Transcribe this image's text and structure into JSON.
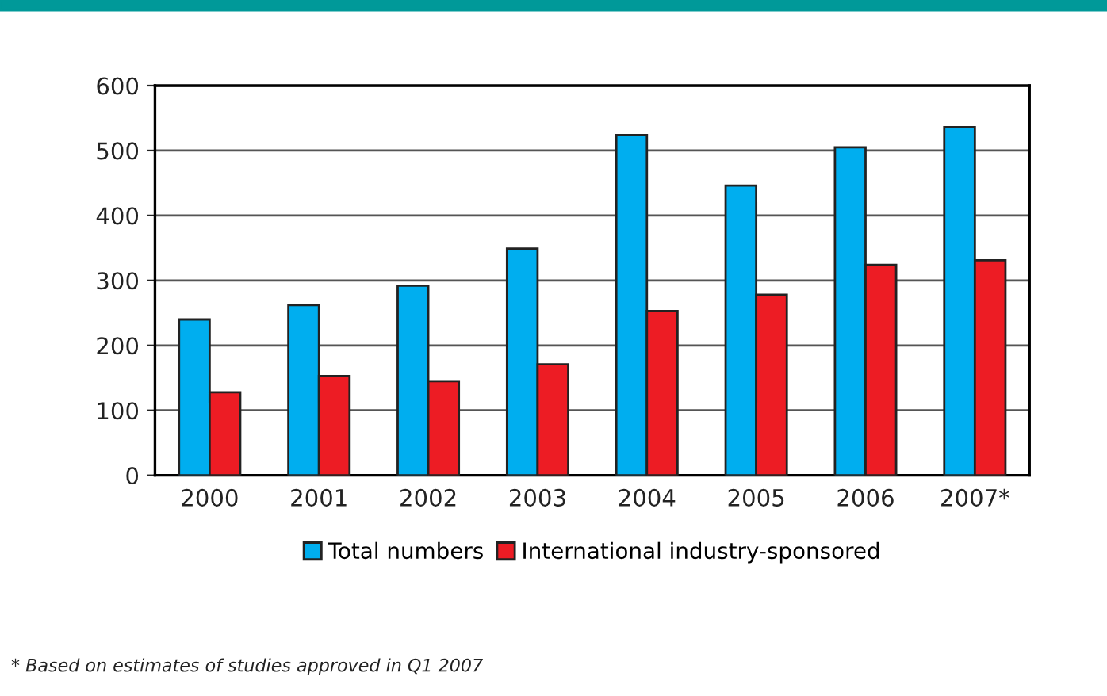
{
  "chart_data": {
    "type": "bar",
    "categories": [
      "2000",
      "2001",
      "2002",
      "2003",
      "2004",
      "2005",
      "2006",
      "2007*"
    ],
    "series": [
      {
        "name": "Total numbers",
        "color": "#00aeef",
        "values": [
          240,
          262,
          292,
          349,
          524,
          446,
          505,
          536
        ]
      },
      {
        "name": "International industry-sponsored",
        "color": "#ed1c24",
        "values": [
          128,
          153,
          145,
          171,
          253,
          278,
          324,
          331
        ]
      }
    ],
    "ylim": [
      0,
      600
    ],
    "yticks": [
      0,
      100,
      200,
      300,
      400,
      500,
      600
    ],
    "grid": "y",
    "legend": "bottom",
    "annotations": [
      "* Based on estimates of studies approved in Q1 2007"
    ]
  }
}
